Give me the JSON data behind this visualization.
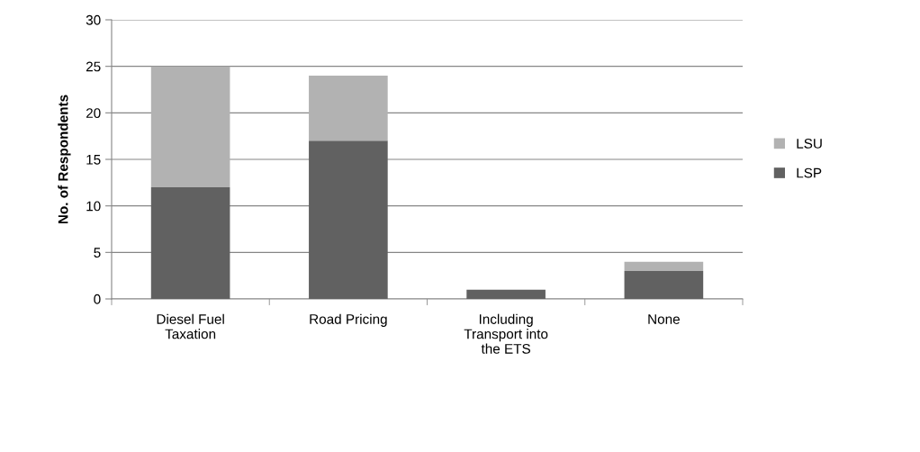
{
  "chart_data": {
    "type": "bar",
    "stacked": true,
    "ylabel": "No. of Respondents",
    "categories": [
      "Diesel Fuel\nTaxation",
      "Road Pricing",
      "Including\nTransport into\nthe ETS",
      "None"
    ],
    "series": [
      {
        "name": "LSP",
        "color": "#616161",
        "values": [
          12,
          17,
          1,
          3
        ]
      },
      {
        "name": "LSU",
        "color": "#b2b2b2",
        "values": [
          13,
          7,
          0,
          1
        ]
      }
    ],
    "ylim": [
      0,
      30
    ],
    "yticks": [
      0,
      5,
      10,
      15,
      20,
      25,
      30
    ],
    "grid": "y",
    "legend": "right"
  }
}
